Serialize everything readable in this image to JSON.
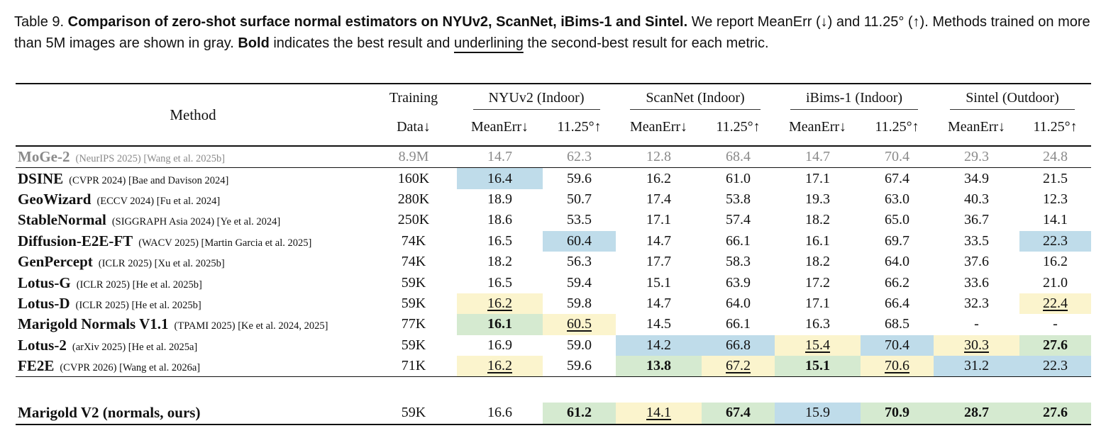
{
  "caption": {
    "label": "Table 9.",
    "bold_title": "Comparison of zero-shot surface normal estimators on NYUv2, ScanNet, iBims-1 and Sintel.",
    "text1": "We report MeanErr (↓) and 11.25° (↑). Methods trained on more than 5M images are shown in gray.",
    "bold_word": "Bold",
    "text2": "indicates the best result and",
    "underline_word": "underlining",
    "text3": "the second-best result for each metric."
  },
  "table": {
    "header": {
      "method": "Method",
      "training_line1": "Training",
      "training_line2": "Data↓",
      "groups": [
        "NYUv2 (Indoor)",
        "ScanNet (Indoor)",
        "iBims-1 (Indoor)",
        "Sintel (Outdoor)"
      ],
      "metrics": [
        "MeanErr↓",
        "11.25°↑",
        "MeanErr↓",
        "11.25°↑",
        "MeanErr↓",
        "11.25°↑",
        "MeanErr↓",
        "11.25°↑"
      ]
    },
    "highlight_colors": {
      "blue": "#bfdcea",
      "green": "#d5ead0",
      "yellow": "#fbf4cd",
      "gray_text": "#8a8a8a"
    },
    "rows": [
      {
        "name": "MoGe-2",
        "venue": "(NeurIPS 2025) [Wang et al. 2025b]",
        "data": "8.9M",
        "gray": true,
        "section": "top",
        "cells": [
          {
            "v": "14.7"
          },
          {
            "v": "62.3"
          },
          {
            "v": "12.8"
          },
          {
            "v": "68.4"
          },
          {
            "v": "14.7"
          },
          {
            "v": "70.4"
          },
          {
            "v": "29.3"
          },
          {
            "v": "24.8"
          }
        ]
      },
      {
        "name": "DSINE",
        "venue": "(CVPR 2024) [Bae and Davison 2024]",
        "data": "160K",
        "section": "sep",
        "cells": [
          {
            "v": "16.4",
            "hl": "blue"
          },
          {
            "v": "59.6"
          },
          {
            "v": "16.2"
          },
          {
            "v": "61.0"
          },
          {
            "v": "17.1"
          },
          {
            "v": "67.4"
          },
          {
            "v": "34.9"
          },
          {
            "v": "21.5"
          }
        ]
      },
      {
        "name": "GeoWizard",
        "venue": "(ECCV 2024) [Fu et al. 2024]",
        "data": "280K",
        "cells": [
          {
            "v": "18.9"
          },
          {
            "v": "50.7"
          },
          {
            "v": "17.4"
          },
          {
            "v": "53.8"
          },
          {
            "v": "19.3"
          },
          {
            "v": "63.0"
          },
          {
            "v": "40.3"
          },
          {
            "v": "12.3"
          }
        ]
      },
      {
        "name": "StableNormal",
        "venue": "(SIGGRAPH Asia 2024) [Ye et al. 2024]",
        "data": "250K",
        "cells": [
          {
            "v": "18.6"
          },
          {
            "v": "53.5"
          },
          {
            "v": "17.1"
          },
          {
            "v": "57.4"
          },
          {
            "v": "18.2"
          },
          {
            "v": "65.0"
          },
          {
            "v": "36.7"
          },
          {
            "v": "14.1"
          }
        ]
      },
      {
        "name": "Diffusion-E2E-FT",
        "venue": "(WACV 2025) [Martin Garcia et al. 2025]",
        "data": "74K",
        "cells": [
          {
            "v": "16.5"
          },
          {
            "v": "60.4",
            "hl": "blue"
          },
          {
            "v": "14.7"
          },
          {
            "v": "66.1"
          },
          {
            "v": "16.1"
          },
          {
            "v": "69.7"
          },
          {
            "v": "33.5"
          },
          {
            "v": "22.3",
            "hl": "blue"
          }
        ]
      },
      {
        "name": "GenPercept",
        "venue": "(ICLR 2025) [Xu et al. 2025b]",
        "data": "74K",
        "cells": [
          {
            "v": "18.2"
          },
          {
            "v": "56.3"
          },
          {
            "v": "17.7"
          },
          {
            "v": "58.3"
          },
          {
            "v": "18.2"
          },
          {
            "v": "64.0"
          },
          {
            "v": "37.6"
          },
          {
            "v": "16.2"
          }
        ]
      },
      {
        "name": "Lotus-G",
        "venue": "(ICLR 2025) [He et al. 2025b]",
        "data": "59K",
        "cells": [
          {
            "v": "16.5"
          },
          {
            "v": "59.4"
          },
          {
            "v": "15.1"
          },
          {
            "v": "63.9"
          },
          {
            "v": "17.2"
          },
          {
            "v": "66.2"
          },
          {
            "v": "33.6"
          },
          {
            "v": "21.0"
          }
        ]
      },
      {
        "name": "Lotus-D",
        "venue": "(ICLR 2025) [He et al. 2025b]",
        "data": "59K",
        "cells": [
          {
            "v": "16.2",
            "hl": "yellow",
            "u": true
          },
          {
            "v": "59.8"
          },
          {
            "v": "14.7"
          },
          {
            "v": "64.0"
          },
          {
            "v": "17.1"
          },
          {
            "v": "66.4"
          },
          {
            "v": "32.3"
          },
          {
            "v": "22.4",
            "hl": "yellow",
            "u": true
          }
        ]
      },
      {
        "name": "Marigold Normals V1.1",
        "venue": "(TPAMI 2025) [Ke et al. 2024, 2025]",
        "data": "77K",
        "cells": [
          {
            "v": "16.1",
            "hl": "green",
            "b": true
          },
          {
            "v": "60.5",
            "hl": "yellow",
            "u": true
          },
          {
            "v": "14.5"
          },
          {
            "v": "66.1"
          },
          {
            "v": "16.3"
          },
          {
            "v": "68.5"
          },
          {
            "v": "-"
          },
          {
            "v": "-"
          }
        ]
      },
      {
        "name": "Lotus-2",
        "venue": "(arXiv 2025) [He et al. 2025a]",
        "data": "59K",
        "cells": [
          {
            "v": "16.9"
          },
          {
            "v": "59.0"
          },
          {
            "v": "14.2",
            "hl": "blue"
          },
          {
            "v": "66.8",
            "hl": "blue"
          },
          {
            "v": "15.4",
            "hl": "yellow",
            "u": true
          },
          {
            "v": "70.4",
            "hl": "blue"
          },
          {
            "v": "30.3",
            "hl": "yellow",
            "u": true
          },
          {
            "v": "27.6",
            "hl": "green",
            "b": true
          }
        ]
      },
      {
        "name": "FE2E",
        "venue": "(CVPR 2026) [Wang et al. 2026a]",
        "data": "71K",
        "cells": [
          {
            "v": "16.2",
            "hl": "yellow",
            "u": true
          },
          {
            "v": "59.6"
          },
          {
            "v": "13.8",
            "hl": "green",
            "b": true
          },
          {
            "v": "67.2",
            "hl": "yellow",
            "u": true
          },
          {
            "v": "15.1",
            "hl": "green",
            "b": true
          },
          {
            "v": "70.6",
            "hl": "yellow",
            "u": true
          },
          {
            "v": "31.2",
            "hl": "blue"
          },
          {
            "v": "22.3",
            "hl": "blue"
          }
        ]
      },
      {
        "name": "Marigold V2 (normals, ours)",
        "venue": "",
        "data": "59K",
        "section": "last",
        "cells": [
          {
            "v": "16.6"
          },
          {
            "v": "61.2",
            "hl": "green",
            "b": true
          },
          {
            "v": "14.1",
            "hl": "yellow",
            "u": true
          },
          {
            "v": "67.4",
            "hl": "green",
            "b": true
          },
          {
            "v": "15.9",
            "hl": "blue"
          },
          {
            "v": "70.9",
            "hl": "green",
            "b": true
          },
          {
            "v": "28.7",
            "hl": "green",
            "b": true
          },
          {
            "v": "27.6",
            "hl": "green",
            "b": true
          }
        ]
      }
    ]
  }
}
